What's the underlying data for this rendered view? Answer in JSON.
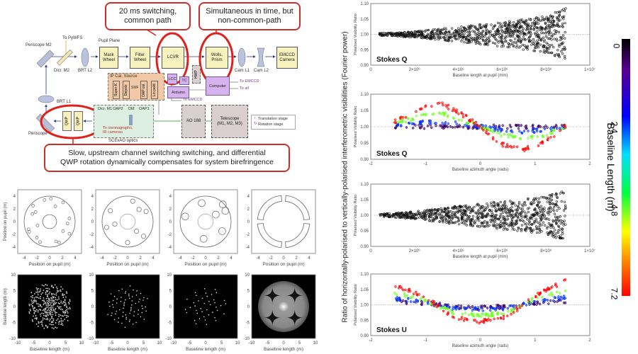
{
  "diagram": {
    "callouts": [
      "20 ms switching,\ncommon path",
      "Simultaneous in time, but\nnon-common-path",
      "Slow, upstream channel switching switching, and differential\nQWP rotation dynamically compensates for system birefringence"
    ],
    "labels": {
      "periscope_m2": "Periscope M2",
      "to_pywfs": "To PyWFS",
      "dicr_m2": "Dicr. M2",
      "brt_l2": "BRT L2",
      "pupil_plane": "Pupil Plane",
      "mask_wheel": "Mask Wheel",
      "filter_wheel": "Filter Wheel",
      "lcvr": "LCVR",
      "wollaston": "Wolls. Prism",
      "cam_l1": "Cam L1",
      "cam_l2": "Cam L2",
      "emccd": "EMCCD Camera",
      "ip_cal": "IP Cal. Source",
      "superk": "Super-K",
      "depolz": "Depolz",
      "smf": "SMF",
      "oap_col": "OAP col.",
      "lin_pold": "Lin pold.",
      "lcc": "LCC",
      "tc": "TC",
      "hwp": "HWP",
      "computer": "Computer",
      "arduino": "Arduino",
      "to_emccd_1": "To EMCCD",
      "to_all": "To all",
      "to_emccd_2": "To EMCCD",
      "brt_l1": "BRT L1",
      "periscope": "Periscope",
      "qwp": "QWP",
      "dicr_m1": "Dicr. M1",
      "oap2": "OAP2",
      "dm": "DM",
      "oap1": "OAP1",
      "to_coronagraphs": "To coronagraphs,\nIR cameras",
      "scexao": "SCExAO optics",
      "ao188": "AO 188",
      "telescope": "Telescope\n(M1, M2, M3)",
      "translation_stage": "Translation stage",
      "rotation_stage": "Rotation stage"
    }
  },
  "colors": {
    "callout_red": "#c9302c",
    "box_yellow": "#f7f1bd",
    "cal_orange": "#f2c9a4",
    "purple": "#d6b3ee",
    "scexao_green": "#dcefe0",
    "ao_gray": "#d9cfcf"
  },
  "shared_ylabel": "Ratio of horizontally-polarised to vertically-polarised interferometric visibilities (Fourier power)",
  "colorbar": {
    "label": "Baseline Length (m)",
    "ticks": [
      "0",
      "2.4",
      "4.8",
      "7.2"
    ],
    "range": [
      0,
      7.2
    ]
  },
  "chart_data": [
    {
      "type": "line",
      "id": "pupil-1",
      "xlabel": "Position on pupil (m)",
      "ylabel": "Position on pupil (m)",
      "xlim": [
        -5,
        5
      ],
      "ylim": [
        -5,
        5
      ],
      "xticks": [
        "-4",
        "-2",
        "0",
        "2",
        "4"
      ],
      "yticks": [
        "4",
        "2",
        "0",
        "-2",
        "-4"
      ],
      "outer_radius": 4,
      "inner_radius": 1.1,
      "hole_radius": 0.22,
      "holes": [
        [
          -0.8,
          3.4
        ],
        [
          0.2,
          3.6
        ],
        [
          2.1,
          3.0
        ],
        [
          -2.6,
          2.5
        ],
        [
          0.9,
          2.4
        ],
        [
          -2.2,
          1.5
        ],
        [
          -2.7,
          1.2
        ],
        [
          3.1,
          0.5
        ],
        [
          2.8,
          -0.3
        ],
        [
          -1.9,
          -0.6
        ],
        [
          3.1,
          -1.9
        ],
        [
          2.1,
          -1.5
        ],
        [
          -3.3,
          -1.2
        ],
        [
          -3.2,
          -1.6
        ],
        [
          -2.0,
          -2.5
        ],
        [
          -1.5,
          -3.2
        ],
        [
          1.0,
          -3.1
        ],
        [
          1.5,
          -3.3
        ]
      ]
    },
    {
      "type": "line",
      "id": "pupil-2",
      "xlabel": "Position on pupil (m)",
      "xlim": [
        -5,
        5
      ],
      "ylim": [
        -5,
        5
      ],
      "xticks": [
        "-4",
        "-2",
        "0",
        "2",
        "4"
      ],
      "yticks": [
        "4",
        "2",
        "0",
        "-2",
        "-4"
      ],
      "outer_radius": 4,
      "inner_radius": 1.2,
      "hole_radius": 0.35,
      "holes": [
        [
          0.8,
          3.2
        ],
        [
          -2.7,
          1.7
        ],
        [
          1.8,
          1.9
        ],
        [
          2.9,
          1.6
        ],
        [
          -3.3,
          -0.9
        ],
        [
          -2.0,
          -0.4
        ],
        [
          1.4,
          -1.5
        ],
        [
          2.5,
          -2.3
        ],
        [
          0,
          -3.3
        ]
      ]
    },
    {
      "type": "line",
      "id": "pupil-3",
      "xlabel": "Position on pupil (m)",
      "xlim": [
        -5,
        5
      ],
      "ylim": [
        -5,
        5
      ],
      "xticks": [
        "-4",
        "-2",
        "0",
        "2",
        "4"
      ],
      "yticks": [
        "4",
        "2",
        "0",
        "-2",
        "-4"
      ],
      "outer_radius": 4,
      "inner_radius": 1.2,
      "hole_radius": 0.55,
      "holes": [
        [
          -0.6,
          2.9
        ],
        [
          2.7,
          2.7
        ],
        [
          3.1,
          1.7
        ],
        [
          1.6,
          1.1
        ],
        [
          -3.2,
          0.8
        ],
        [
          2.6,
          -1.5
        ],
        [
          -0.3,
          -2.7
        ]
      ]
    },
    {
      "type": "line",
      "id": "pupil-4",
      "xlabel": "Position on pupil (m)",
      "xlim": [
        -5,
        5
      ],
      "ylim": [
        -5,
        5
      ],
      "xticks": [
        "-4",
        "-2",
        "0",
        "2",
        "4"
      ],
      "yticks": [
        "4",
        "2",
        "0",
        "-2",
        "-4"
      ],
      "annulus": [
        3.2,
        4.1
      ],
      "segments_deg": [
        [
          5,
          85
        ],
        [
          95,
          175
        ],
        [
          185,
          265
        ],
        [
          275,
          355
        ]
      ]
    },
    {
      "type": "scatter",
      "id": "uv-1",
      "xlabel": "Baseline length (m)",
      "ylabel": "Baseline length (m)",
      "xlim": [
        -10,
        10
      ],
      "ylim": [
        -10,
        10
      ],
      "xticks": [
        "-10",
        "-5",
        "0",
        "5",
        "10"
      ],
      "yticks": [
        "10",
        "5",
        "0",
        "-5",
        "-10"
      ],
      "source": "pupil-1"
    },
    {
      "type": "scatter",
      "id": "uv-2",
      "xlabel": "Baseline length (m)",
      "xlim": [
        -10,
        10
      ],
      "ylim": [
        -10,
        10
      ],
      "xticks": [
        "-10",
        "-5",
        "0",
        "5",
        "10"
      ],
      "yticks": [
        "10",
        "5",
        "0",
        "-5",
        "-10"
      ],
      "source": "pupil-2"
    },
    {
      "type": "scatter",
      "id": "uv-3",
      "xlabel": "Baseline length (m)",
      "xlim": [
        -10,
        10
      ],
      "ylim": [
        -10,
        10
      ],
      "xticks": [
        "-10",
        "-5",
        "0",
        "5",
        "10"
      ],
      "yticks": [
        "10",
        "5",
        "0",
        "-5",
        "-10"
      ],
      "source": "pupil-3"
    },
    {
      "type": "heatmap",
      "id": "uv-4",
      "xlabel": "Baseline length (m)",
      "xlim": [
        -10,
        10
      ],
      "ylim": [
        -10,
        10
      ],
      "xticks": [
        "-10",
        "-5",
        "0",
        "5",
        "10"
      ],
      "yticks": [
        "10",
        "5",
        "0",
        "-5",
        "-10"
      ],
      "source": "pupil-4"
    },
    {
      "type": "scatter",
      "id": "vis-len-q",
      "label": "Stokes Q",
      "xlabel": "Baseline length at pupil (mm)",
      "ylabel": "Polarised Visibility Ratio",
      "xlim": [
        0,
        10000000
      ],
      "ylim": [
        0.9,
        1.1
      ],
      "xticks": [
        "0",
        "2×10⁶",
        "4×10⁶",
        "6×10⁶",
        "8×10⁶",
        "1×10⁷"
      ],
      "yticks": [
        "1.10",
        "1.05",
        "1.00",
        "0.95",
        "0.90"
      ],
      "x_range": [
        400000,
        8900000
      ],
      "spread_at": {
        "x": [
          400000,
          2000000,
          4000000,
          6000000,
          8000000,
          8900000
        ],
        "halfwidth": [
          0.004,
          0.01,
          0.025,
          0.04,
          0.06,
          0.085
        ]
      }
    },
    {
      "type": "scatter",
      "id": "vis-az-q",
      "label": "Stokes Q",
      "xlabel": "Baseline azimuth angle (rads)",
      "ylabel": "Polarised Visibility Ratio",
      "xlim": [
        -2,
        2
      ],
      "ylim": [
        0.9,
        1.1
      ],
      "xticks": [
        "-2",
        "-1",
        "0",
        "1",
        "2"
      ],
      "yticks": [
        "1.10",
        "1.05",
        "1.00",
        "0.95",
        "0.90"
      ],
      "x": [
        -1.57,
        -1.0,
        -0.7,
        -0.4,
        0,
        0.4,
        0.8,
        1.2,
        1.57
      ],
      "series": [
        {
          "baseline_m": 0.6,
          "values": [
            1.0,
            1.0,
            1.0,
            1.0,
            1.0,
            1.0,
            1.0,
            1.0,
            1.0
          ]
        },
        {
          "baseline_m": 2.4,
          "values": [
            1.005,
            1.015,
            1.015,
            1.01,
            1.0,
            0.99,
            0.985,
            0.99,
            1.0
          ]
        },
        {
          "baseline_m": 4.8,
          "values": [
            1.01,
            1.035,
            1.04,
            1.025,
            1.0,
            0.975,
            0.965,
            0.975,
            1.0
          ]
        },
        {
          "baseline_m": 7.2,
          "values": [
            1.015,
            1.06,
            1.07,
            1.045,
            1.0,
            0.945,
            0.93,
            0.955,
            1.005
          ]
        }
      ]
    },
    {
      "type": "scatter",
      "id": "vis-len-u",
      "label": "",
      "xlabel": "Baseline length at pupil (mm)",
      "ylabel": "Polarised Visibility Ratio",
      "xlim": [
        0,
        10000000
      ],
      "ylim": [
        0.9,
        1.1
      ],
      "xticks": [
        "0",
        "2×10⁶",
        "4×10⁶",
        "6×10⁶",
        "8×10⁶",
        "1×10⁷"
      ],
      "yticks": [
        "1.10",
        "1.05",
        "1.00",
        "0.95",
        "0.90"
      ],
      "x_range": [
        400000,
        8900000
      ],
      "spread_at": {
        "x": [
          400000,
          2000000,
          4000000,
          6000000,
          8000000,
          8900000
        ],
        "halfwidth": [
          0.004,
          0.012,
          0.03,
          0.045,
          0.06,
          0.085
        ]
      }
    },
    {
      "type": "scatter",
      "id": "vis-az-u",
      "label": "Stokes U",
      "xlabel": "Baseline azimuth angle (rads)",
      "ylabel": "Polarised Visibility Ratio",
      "xlim": [
        -2,
        2
      ],
      "ylim": [
        0.9,
        1.1
      ],
      "xticks": [
        "-2",
        "-1",
        "0",
        "1",
        "2"
      ],
      "yticks": [
        "1.10",
        "1.05",
        "1.00",
        "0.95",
        "0.90"
      ],
      "x": [
        -1.57,
        -1.0,
        -0.5,
        0,
        0.5,
        1.0,
        1.57
      ],
      "series": [
        {
          "baseline_m": 0.6,
          "values": [
            1.01,
            1.005,
            0.995,
            0.99,
            0.995,
            1.005,
            1.01
          ]
        },
        {
          "baseline_m": 2.4,
          "values": [
            1.02,
            1.01,
            0.99,
            0.985,
            0.99,
            1.01,
            1.025
          ]
        },
        {
          "baseline_m": 4.8,
          "values": [
            1.04,
            1.015,
            0.975,
            0.965,
            0.975,
            1.02,
            1.045
          ]
        },
        {
          "baseline_m": 7.2,
          "values": [
            1.065,
            1.025,
            0.96,
            0.945,
            0.96,
            1.03,
            1.08
          ]
        }
      ]
    }
  ]
}
